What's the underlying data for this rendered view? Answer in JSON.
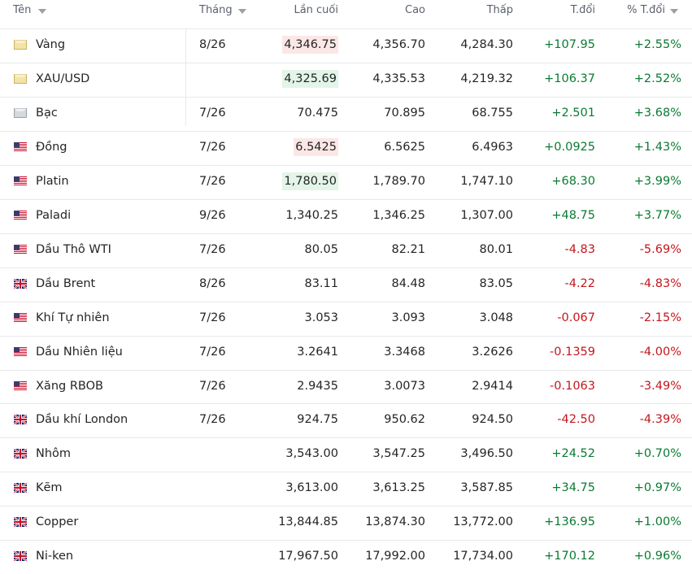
{
  "table": {
    "headers": [
      "Tên",
      "Tháng",
      "Lần cuối",
      "Cao",
      "Thấp",
      "T.đổi",
      "% T.đổi"
    ],
    "rows": [
      {
        "icon": "gold",
        "name": "Vàng",
        "month": "8/26",
        "last": "4,346.75",
        "flash": "down",
        "high": "4,356.70",
        "low": "4,284.30",
        "change": "+107.95",
        "pct": "+2.55%"
      },
      {
        "icon": "gold",
        "name": "XAU/USD",
        "month": null,
        "last": "4,325.69",
        "flash": "up",
        "high": "4,335.53",
        "low": "4,219.32",
        "change": "+106.37",
        "pct": "+2.52%"
      },
      {
        "icon": "silver",
        "name": "Bạc",
        "month": "7/26",
        "last": "70.475",
        "flash": null,
        "high": "70.895",
        "low": "68.755",
        "change": "+2.501",
        "pct": "+3.68%"
      },
      {
        "icon": "us",
        "name": "Đồng",
        "month": "7/26",
        "last": "6.5425",
        "flash": "down",
        "high": "6.5625",
        "low": "6.4963",
        "change": "+0.0925",
        "pct": "+1.43%"
      },
      {
        "icon": "us",
        "name": "Platin",
        "month": "7/26",
        "last": "1,780.50",
        "flash": "up",
        "high": "1,789.70",
        "low": "1,747.10",
        "change": "+68.30",
        "pct": "+3.99%"
      },
      {
        "icon": "us",
        "name": "Paladi",
        "month": "9/26",
        "last": "1,340.25",
        "flash": null,
        "high": "1,346.25",
        "low": "1,307.00",
        "change": "+48.75",
        "pct": "+3.77%"
      },
      {
        "icon": "us",
        "name": "Dầu Thô WTI",
        "month": "7/26",
        "last": "80.05",
        "flash": null,
        "high": "82.21",
        "low": "80.01",
        "change": "-4.83",
        "pct": "-5.69%"
      },
      {
        "icon": "uk",
        "name": "Dầu Brent",
        "month": "8/26",
        "last": "83.11",
        "flash": null,
        "high": "84.48",
        "low": "83.05",
        "change": "-4.22",
        "pct": "-4.83%"
      },
      {
        "icon": "us",
        "name": "Khí Tự nhiên",
        "month": "7/26",
        "last": "3.053",
        "flash": null,
        "high": "3.093",
        "low": "3.048",
        "change": "-0.067",
        "pct": "-2.15%"
      },
      {
        "icon": "us",
        "name": "Dầu Nhiên liệu",
        "month": "7/26",
        "last": "3.2641",
        "flash": null,
        "high": "3.3468",
        "low": "3.2626",
        "change": "-0.1359",
        "pct": "-4.00%"
      },
      {
        "icon": "us",
        "name": "Xăng RBOB",
        "month": "7/26",
        "last": "2.9435",
        "flash": null,
        "high": "3.0073",
        "low": "2.9414",
        "change": "-0.1063",
        "pct": "-3.49%"
      },
      {
        "icon": "uk",
        "name": "Dầu khí London",
        "month": "7/26",
        "last": "924.75",
        "flash": null,
        "high": "950.62",
        "low": "924.50",
        "change": "-42.50",
        "pct": "-4.39%"
      },
      {
        "icon": "uk",
        "name": "Nhôm",
        "month": null,
        "last": "3,543.00",
        "flash": null,
        "high": "3,547.25",
        "low": "3,496.50",
        "change": "+24.52",
        "pct": "+0.70%"
      },
      {
        "icon": "uk",
        "name": "Kẽm",
        "month": null,
        "last": "3,613.00",
        "flash": null,
        "high": "3,613.25",
        "low": "3,587.85",
        "change": "+34.75",
        "pct": "+0.97%"
      },
      {
        "icon": "uk",
        "name": "Copper",
        "month": null,
        "last": "13,844.85",
        "flash": null,
        "high": "13,874.30",
        "low": "13,772.00",
        "change": "+136.95",
        "pct": "+1.00%"
      },
      {
        "icon": "uk",
        "name": "Ni-ken",
        "month": null,
        "last": "17,967.50",
        "flash": null,
        "high": "17,992.00",
        "low": "17,734.00",
        "change": "+170.12",
        "pct": "+0.96%"
      }
    ]
  }
}
